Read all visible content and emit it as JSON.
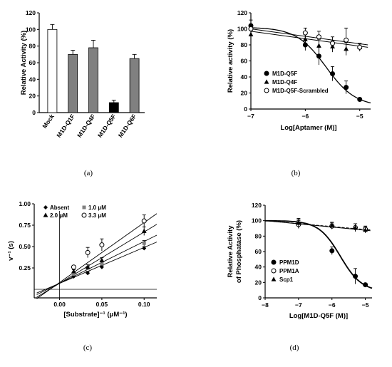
{
  "chart_data": [
    {
      "panel": "(a)",
      "type": "bar",
      "ylabel": "Relative Activity (%)",
      "ylim": [
        0,
        120
      ],
      "yticks": [
        0,
        20,
        40,
        60,
        80,
        100,
        120
      ],
      "categories": [
        "Mock",
        "M1D-Q1F",
        "M1D-Q4F",
        "M1D-Q5F",
        "M1D-Q6F"
      ],
      "values": [
        100,
        70,
        78,
        12,
        65
      ],
      "errors": [
        6,
        5,
        9,
        3,
        5
      ],
      "fills": [
        "#ffffff",
        "#808080",
        "#808080",
        "#000000",
        "#808080"
      ]
    },
    {
      "panel": "(b)",
      "type": "scatter",
      "xlabel": "Log[Aptamer (M)]",
      "ylabel": "Relative activity (%)",
      "xlim": [
        -7,
        -4.8
      ],
      "ylim": [
        0,
        120
      ],
      "xticks": [
        -7,
        -6,
        -5
      ],
      "yticks": [
        0,
        20,
        40,
        60,
        80,
        100,
        120
      ],
      "legend_position": "bottom-left",
      "series": [
        {
          "name": "M1D-Q5F",
          "marker": "circle-filled",
          "x": [
            -7,
            -6,
            -5.75,
            -5.5,
            -5.25,
            -5
          ],
          "y": [
            104,
            80,
            66,
            44,
            27,
            12
          ],
          "err": [
            7,
            7,
            11,
            9,
            8,
            2
          ],
          "fit": "sigmoid"
        },
        {
          "name": "M1D-Q4F",
          "marker": "triangle-filled",
          "x": [
            -7,
            -6,
            -5.75,
            -5.5,
            -5.25,
            -5
          ],
          "y": [
            93,
            87,
            79,
            78,
            75,
            77
          ],
          "err": [
            5,
            6,
            8,
            7,
            8,
            5
          ],
          "fit": "line"
        },
        {
          "name": "M1D-Q5F-Scrambled",
          "marker": "circle-open",
          "x": [
            -7,
            -6,
            -5.75,
            -5.5,
            -5.25,
            -5
          ],
          "y": [
            100,
            95,
            90,
            82,
            86,
            77
          ],
          "err": [
            5,
            6,
            7,
            8,
            15,
            4
          ],
          "fit": "line"
        }
      ]
    },
    {
      "panel": "(c)",
      "type": "scatter",
      "xlabel": "[Substrate]⁻¹ (μM⁻¹)",
      "ylabel": "v⁻¹ (s)",
      "xlim": [
        -0.03,
        0.115
      ],
      "ylim": [
        -0.1,
        1.0
      ],
      "xticks": [
        0.0,
        0.05,
        0.1
      ],
      "xticklabels": [
        "0.00",
        "0.05",
        "0.10"
      ],
      "yticks": [
        0.25,
        0.5,
        0.75,
        1.0
      ],
      "yticklabels": [
        "0.25",
        "0.50",
        "0.75",
        "1.00"
      ],
      "legend_position": "top-left",
      "series": [
        {
          "name": "Absent",
          "marker": "diamond-filled",
          "x": [
            0.0167,
            0.0333,
            0.05,
            0.1
          ],
          "y": [
            0.15,
            0.19,
            0.26,
            0.48
          ],
          "err": [
            0.01,
            0.02,
            0.02,
            0.02
          ]
        },
        {
          "name": "1.0 μM",
          "marker": "square-gray",
          "x": [
            0.0167,
            0.0333,
            0.05,
            0.1
          ],
          "y": [
            0.18,
            0.25,
            0.3,
            0.54
          ],
          "err": [
            0.01,
            0.02,
            0.03,
            0.03
          ]
        },
        {
          "name": "2.0 μM",
          "marker": "triangle-filled",
          "x": [
            0.0167,
            0.0333,
            0.05,
            0.1
          ],
          "y": [
            0.21,
            0.26,
            0.34,
            0.68
          ],
          "err": [
            0.02,
            0.03,
            0.03,
            0.05
          ]
        },
        {
          "name": "3.3 μM",
          "marker": "circle-open",
          "x": [
            0.0167,
            0.0333,
            0.05,
            0.1
          ],
          "y": [
            0.26,
            0.43,
            0.52,
            0.8
          ],
          "err": [
            0.02,
            0.06,
            0.07,
            0.07
          ]
        }
      ]
    },
    {
      "panel": "(d)",
      "type": "scatter",
      "xlabel": "Log[M1D-Q5F (M)]",
      "ylabel": "Relative Activity of Phosphatase (%)",
      "ylabel_lines": [
        "Relative Activity",
        "of Phosphatase (%)"
      ],
      "xlim": [
        -8,
        -4.8
      ],
      "ylim": [
        0,
        120
      ],
      "xticks": [
        -8,
        -7,
        -6,
        -5
      ],
      "yticks": [
        0,
        20,
        40,
        60,
        80,
        100,
        120
      ],
      "legend_position": "bottom-left",
      "series": [
        {
          "name": "PPM1D",
          "marker": "circle-filled",
          "x": [
            -7,
            -6,
            -5.3,
            -5
          ],
          "y": [
            96,
            61,
            28,
            17
          ],
          "err": [
            6,
            5,
            10,
            2
          ],
          "fit": "sigmoid"
        },
        {
          "name": "PPM1A",
          "marker": "circle-open",
          "x": [
            -7,
            -6,
            -5.3,
            -5
          ],
          "y": [
            95,
            93,
            91,
            89
          ],
          "err": [
            5,
            4,
            5,
            4
          ],
          "fit": "dashed"
        },
        {
          "name": "Scp1",
          "marker": "triangle-filled",
          "x": [
            -7,
            -6,
            -5.3,
            -5
          ],
          "y": [
            97,
            94,
            91,
            88
          ],
          "err": [
            6,
            4,
            5,
            4
          ],
          "fit": "line"
        }
      ]
    }
  ]
}
